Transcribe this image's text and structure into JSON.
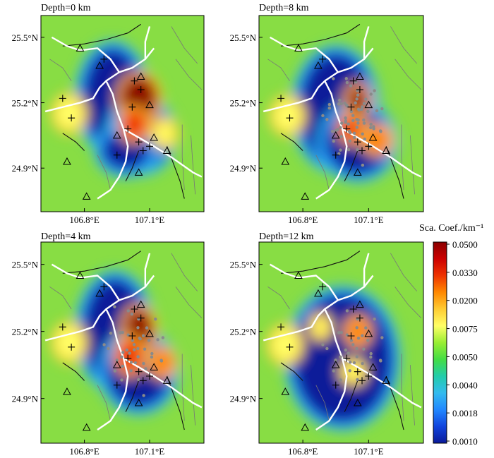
{
  "chart_data": {
    "type": "heatmap",
    "colorbar": {
      "title": "Sca. Coef./km⁻¹",
      "ticks": [
        "0.0500",
        "0.0330",
        "0.0200",
        "0.0075",
        "0.0050",
        "0.0040",
        "0.0018",
        "0.0010"
      ],
      "stops": [
        "#8b0000",
        "#cc0000",
        "#ee3300",
        "#ff8800",
        "#ffcc33",
        "#ffff66",
        "#99ee33",
        "#44dd44",
        "#22ccaa",
        "#33bbee",
        "#2288ff",
        "#1144dd",
        "#0a1a99"
      ]
    },
    "background_color": "#88dd44",
    "axes": {
      "x_ticks": [
        "106.8°E",
        "107.1°E"
      ],
      "y_ticks": [
        "25.5°N",
        "25.2°N",
        "24.9°N"
      ],
      "xlim": [
        106.6,
        107.35
      ],
      "ylim": [
        24.7,
        25.6
      ]
    },
    "panels": [
      {
        "title": "Depth=0 km",
        "blobs": [
          {
            "lon": 106.93,
            "lat": 25.22,
            "rx": 0.13,
            "ry": 0.22,
            "v": 0.001
          },
          {
            "lon": 107.06,
            "lat": 25.05,
            "rx": 0.12,
            "ry": 0.14,
            "v": 0.001
          },
          {
            "lon": 106.99,
            "lat": 24.98,
            "rx": 0.1,
            "ry": 0.08,
            "v": 0.001
          },
          {
            "lon": 107.05,
            "lat": 25.22,
            "rx": 0.08,
            "ry": 0.1,
            "v": 0.05
          },
          {
            "lon": 107.03,
            "lat": 25.1,
            "rx": 0.05,
            "ry": 0.06,
            "v": 0.033
          },
          {
            "lon": 106.73,
            "lat": 25.15,
            "rx": 0.06,
            "ry": 0.07,
            "v": 0.0075
          },
          {
            "lon": 107.17,
            "lat": 25.06,
            "rx": 0.04,
            "ry": 0.05,
            "v": 0.0075
          }
        ]
      },
      {
        "title": "Depth=8 km",
        "blobs": [
          {
            "lon": 106.95,
            "lat": 25.17,
            "rx": 0.16,
            "ry": 0.25,
            "v": 0.001
          },
          {
            "lon": 107.05,
            "lat": 25.02,
            "rx": 0.14,
            "ry": 0.14,
            "v": 0.001
          },
          {
            "lon": 107.05,
            "lat": 25.21,
            "rx": 0.04,
            "ry": 0.06,
            "v": 0.05
          },
          {
            "lon": 107.02,
            "lat": 25.08,
            "rx": 0.04,
            "ry": 0.05,
            "v": 0.033
          },
          {
            "lon": 106.73,
            "lat": 25.14,
            "rx": 0.06,
            "ry": 0.07,
            "v": 0.0075
          },
          {
            "lon": 107.14,
            "lat": 25.03,
            "rx": 0.05,
            "ry": 0.05,
            "v": 0.02
          }
        ]
      },
      {
        "title": "Depth=4 km",
        "blobs": [
          {
            "lon": 106.94,
            "lat": 25.2,
            "rx": 0.14,
            "ry": 0.23,
            "v": 0.001
          },
          {
            "lon": 107.05,
            "lat": 25.02,
            "rx": 0.14,
            "ry": 0.15,
            "v": 0.001
          },
          {
            "lon": 107.05,
            "lat": 25.21,
            "rx": 0.06,
            "ry": 0.09,
            "v": 0.05
          },
          {
            "lon": 107.01,
            "lat": 25.09,
            "rx": 0.05,
            "ry": 0.07,
            "v": 0.033
          },
          {
            "lon": 106.73,
            "lat": 25.15,
            "rx": 0.06,
            "ry": 0.07,
            "v": 0.0075
          },
          {
            "lon": 107.16,
            "lat": 25.06,
            "rx": 0.04,
            "ry": 0.05,
            "v": 0.02
          }
        ]
      },
      {
        "title": "Depth=12 km",
        "blobs": [
          {
            "lon": 106.98,
            "lat": 25.08,
            "rx": 0.22,
            "ry": 0.28,
            "v": 0.001
          },
          {
            "lon": 106.72,
            "lat": 25.14,
            "rx": 0.06,
            "ry": 0.07,
            "v": 0.0075
          },
          {
            "lon": 106.88,
            "lat": 25.22,
            "rx": 0.03,
            "ry": 0.04,
            "v": 0.0075
          },
          {
            "lon": 107.05,
            "lat": 25.2,
            "rx": 0.04,
            "ry": 0.05,
            "v": 0.02
          },
          {
            "lon": 107.03,
            "lat": 25.02,
            "rx": 0.04,
            "ry": 0.04,
            "v": 0.0075
          }
        ]
      }
    ]
  }
}
